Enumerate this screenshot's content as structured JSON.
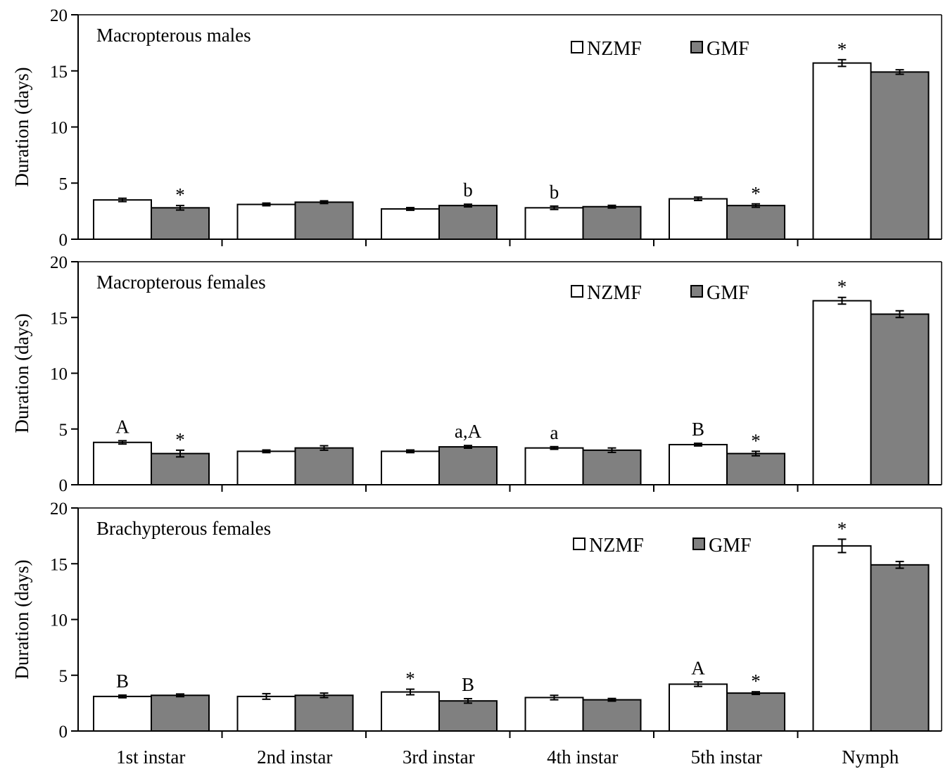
{
  "chart_data": [
    {
      "type": "bar",
      "title": "Macropterous males",
      "ylabel": "Duration (days)",
      "ylim": [
        0,
        20
      ],
      "yticks": [
        "0",
        "5",
        "10",
        "15",
        "20"
      ],
      "categories": [
        "1st instar",
        "2nd instar",
        "3rd instar",
        "4th instar",
        "5th instar",
        "Nymph"
      ],
      "legend_position": "top-right",
      "series": [
        {
          "name": "NZMF",
          "color": "#ffffff",
          "values": [
            3.5,
            3.1,
            2.7,
            2.8,
            3.6,
            15.7
          ],
          "errors": [
            0.15,
            0.12,
            0.12,
            0.15,
            0.15,
            0.3
          ]
        },
        {
          "name": "GMF",
          "color": "#808080",
          "values": [
            2.8,
            3.3,
            3.0,
            2.9,
            3.0,
            14.9
          ],
          "errors": [
            0.2,
            0.12,
            0.12,
            0.12,
            0.15,
            0.2
          ]
        }
      ],
      "annotations": [
        {
          "category": "1st instar",
          "series": "GMF",
          "text": "*"
        },
        {
          "category": "3rd instar",
          "series": "GMF",
          "text": "b"
        },
        {
          "category": "4th instar",
          "series": "NZMF",
          "text": "b"
        },
        {
          "category": "5th instar",
          "series": "GMF",
          "text": "*"
        },
        {
          "category": "Nymph",
          "series": "NZMF",
          "text": "*"
        }
      ]
    },
    {
      "type": "bar",
      "title": "Macropterous females",
      "ylabel": "Duration (days)",
      "ylim": [
        0,
        20
      ],
      "yticks": [
        "0",
        "5",
        "10",
        "15",
        "20"
      ],
      "categories": [
        "1st instar",
        "2nd instar",
        "3rd instar",
        "4th instar",
        "5th instar",
        "Nymph"
      ],
      "legend_position": "top-right",
      "series": [
        {
          "name": "NZMF",
          "color": "#ffffff",
          "values": [
            3.8,
            3.0,
            3.0,
            3.3,
            3.6,
            16.5
          ],
          "errors": [
            0.15,
            0.12,
            0.12,
            0.12,
            0.12,
            0.3
          ]
        },
        {
          "name": "GMF",
          "color": "#808080",
          "values": [
            2.8,
            3.3,
            3.4,
            3.1,
            2.8,
            15.3
          ],
          "errors": [
            0.3,
            0.2,
            0.12,
            0.2,
            0.2,
            0.3
          ]
        }
      ],
      "annotations": [
        {
          "category": "1st instar",
          "series": "NZMF",
          "text": "A"
        },
        {
          "category": "1st instar",
          "series": "GMF",
          "text": "*"
        },
        {
          "category": "3rd instar",
          "series": "GMF",
          "text": "a,A"
        },
        {
          "category": "4th instar",
          "series": "NZMF",
          "text": "a"
        },
        {
          "category": "5th instar",
          "series": "NZMF",
          "text": "B"
        },
        {
          "category": "5th instar",
          "series": "GMF",
          "text": "*"
        },
        {
          "category": "Nymph",
          "series": "NZMF",
          "text": "*"
        }
      ]
    },
    {
      "type": "bar",
      "title": "Brachypterous females",
      "ylabel": "Duration (days)",
      "ylim": [
        0,
        20
      ],
      "yticks": [
        "0",
        "5",
        "10",
        "15",
        "20"
      ],
      "categories": [
        "1st instar",
        "2nd instar",
        "3rd instar",
        "4th instar",
        "5th instar",
        "Nymph"
      ],
      "legend_position": "top-right",
      "series": [
        {
          "name": "NZMF",
          "color": "#ffffff",
          "values": [
            3.1,
            3.1,
            3.5,
            3.0,
            4.2,
            16.6
          ],
          "errors": [
            0.12,
            0.25,
            0.25,
            0.2,
            0.2,
            0.6
          ]
        },
        {
          "name": "GMF",
          "color": "#808080",
          "values": [
            3.2,
            3.2,
            2.7,
            2.8,
            3.4,
            14.9
          ],
          "errors": [
            0.12,
            0.2,
            0.2,
            0.12,
            0.12,
            0.3
          ]
        }
      ],
      "annotations": [
        {
          "category": "1st instar",
          "series": "NZMF",
          "text": "B"
        },
        {
          "category": "3rd instar",
          "series": "NZMF",
          "text": "*"
        },
        {
          "category": "3rd instar",
          "series": "GMF",
          "text": "B"
        },
        {
          "category": "5th instar",
          "series": "NZMF",
          "text": "A"
        },
        {
          "category": "5th instar",
          "series": "GMF",
          "text": "*"
        },
        {
          "category": "Nymph",
          "series": "NZMF",
          "text": "*"
        }
      ]
    }
  ]
}
